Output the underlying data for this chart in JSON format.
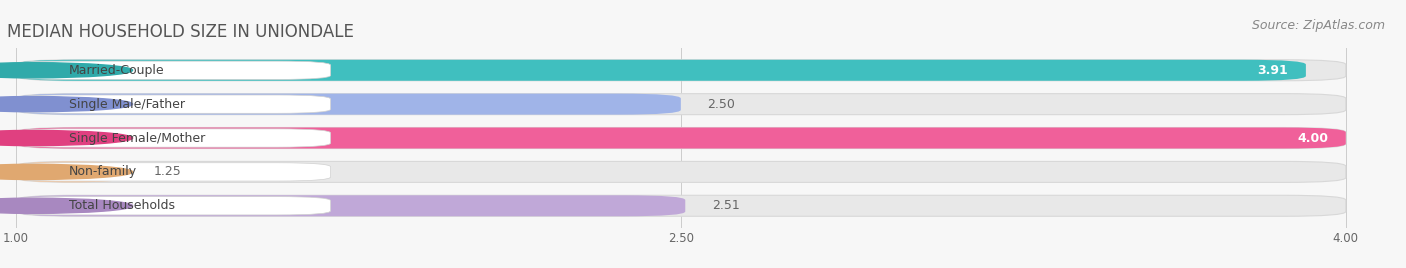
{
  "title": "MEDIAN HOUSEHOLD SIZE IN UNIONDALE",
  "source": "Source: ZipAtlas.com",
  "categories": [
    "Married-Couple",
    "Single Male/Father",
    "Single Female/Mother",
    "Non-family",
    "Total Households"
  ],
  "values": [
    3.91,
    2.5,
    4.0,
    1.25,
    2.51
  ],
  "bar_colors": [
    "#40bfbf",
    "#a0b4e8",
    "#f0609a",
    "#f5c8a0",
    "#c0a8d8"
  ],
  "circle_colors": [
    "#30aaaa",
    "#8090d0",
    "#e04080",
    "#e0a870",
    "#a888c0"
  ],
  "xmin": 1.0,
  "xmax": 4.0,
  "xticks": [
    1.0,
    2.5,
    4.0
  ],
  "value_labels": [
    "3.91",
    "2.50",
    "4.00",
    "1.25",
    "2.51"
  ],
  "value_inside": [
    true,
    false,
    true,
    false,
    false
  ],
  "background_color": "#f7f7f7",
  "title_fontsize": 12,
  "source_fontsize": 9,
  "label_fontsize": 9,
  "value_fontsize": 9
}
